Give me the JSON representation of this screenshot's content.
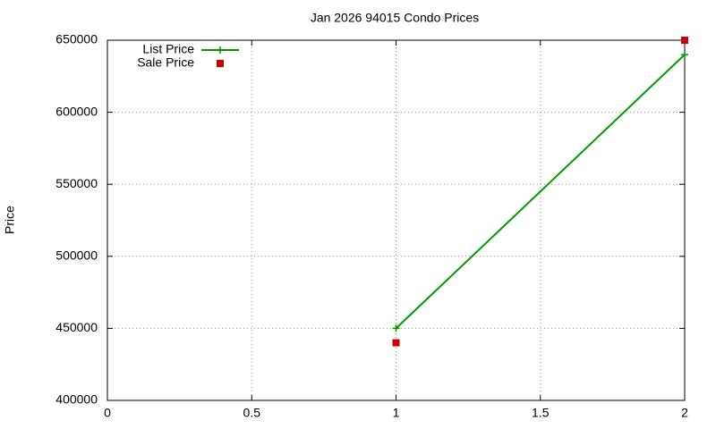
{
  "chart_data": {
    "type": "line",
    "title": "Jan 2026 94015 Condo Prices",
    "y_label": "Price",
    "x": [
      1,
      2
    ],
    "series": [
      {
        "name": "List Price",
        "color": "#009900",
        "mode": "linespoints",
        "values": [
          450000,
          640000
        ]
      },
      {
        "name": "Sale Price",
        "color": "#cc0000",
        "mode": "points",
        "values": [
          440000,
          650000
        ]
      }
    ],
    "xlim": [
      0,
      2
    ],
    "xticks": [
      0,
      0.5,
      1,
      1.5,
      2
    ],
    "ylim": [
      400000,
      650000
    ],
    "yticks": [
      400000,
      450000,
      500000,
      550000,
      600000,
      650000
    ],
    "grid": true,
    "legend": "top-left"
  }
}
